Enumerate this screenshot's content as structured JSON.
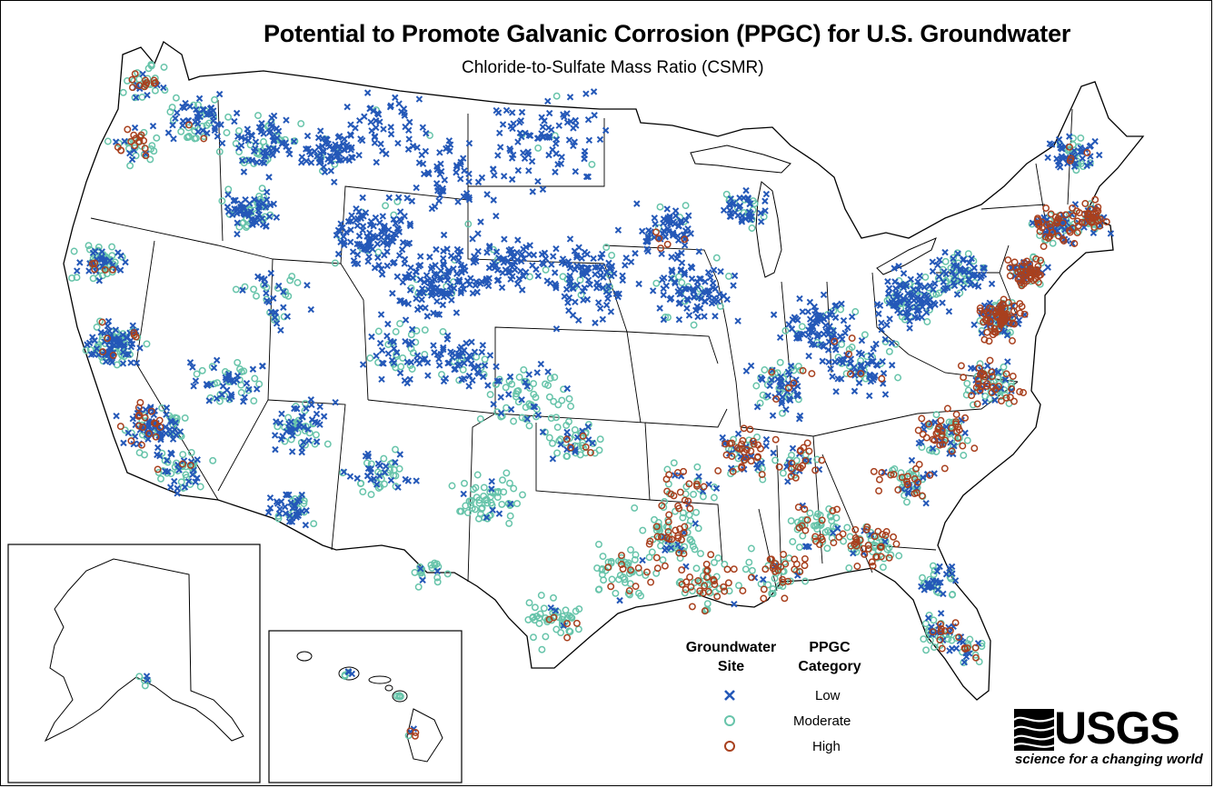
{
  "title": "Potential to Promote Galvanic Corrosion (PPGC) for U.S. Groundwater",
  "subtitle": "Chloride-to-Sulfate Mass Ratio (CSMR)",
  "legend": {
    "site_heading_line1": "Groundwater",
    "site_heading_line2": "Site",
    "category_heading_line1": "PPGC",
    "category_heading_line2": "Category",
    "items": [
      {
        "label": "Low",
        "symbol": "x-mark",
        "color": "#2458b8"
      },
      {
        "label": "Moderate",
        "symbol": "open-circle",
        "color": "#67c4aa"
      },
      {
        "label": "High",
        "symbol": "open-circle",
        "color": "#a8401e"
      }
    ]
  },
  "logo": {
    "wordmark": "USGS",
    "tagline": "science for a changing world"
  },
  "colors": {
    "low": "#2458b8",
    "moderate": "#67c4aa",
    "high": "#a8401e",
    "boundary": "#000000"
  },
  "insets": [
    "Alaska",
    "Hawaii"
  ]
}
